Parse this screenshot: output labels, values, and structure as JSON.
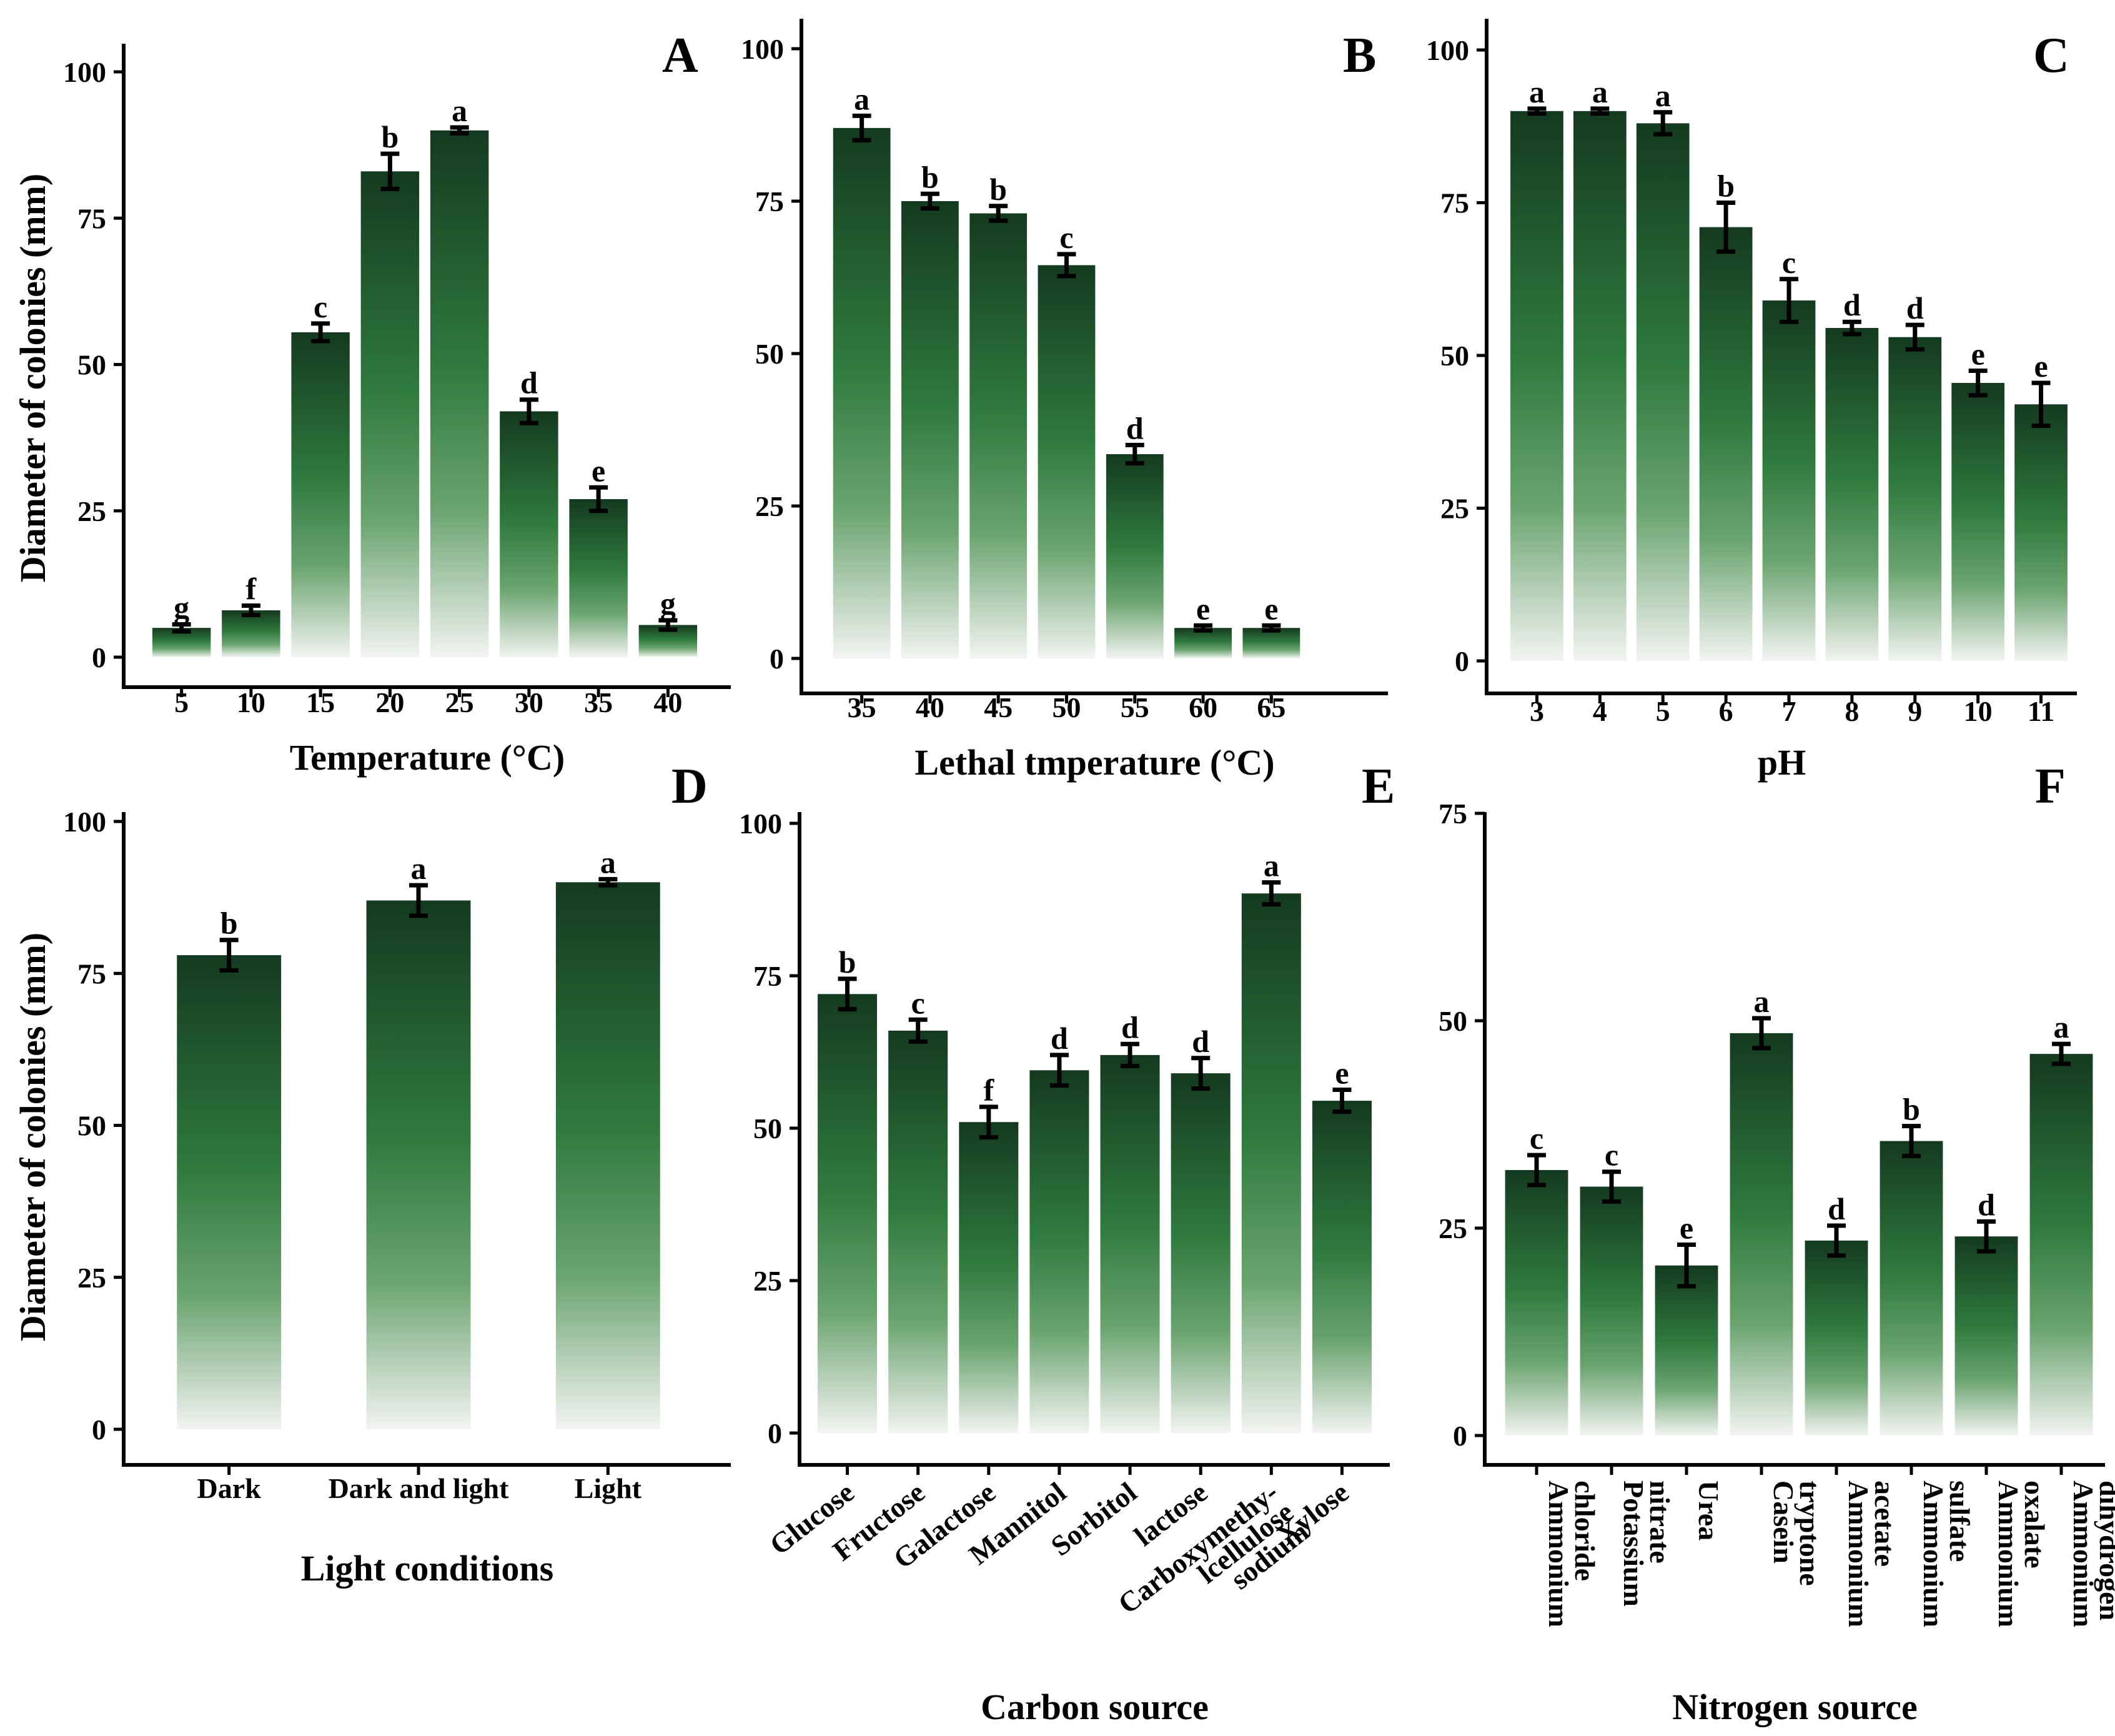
{
  "colors": {
    "bar_top": "#143a1f",
    "bar_mid": "#2f7a3e",
    "bar_bottom": "#f3f4f2",
    "axis": "#000000"
  },
  "chart_data": [
    {
      "id": "A",
      "type": "bar",
      "panel_label": "A",
      "xlabel": "Temperature (°C)",
      "ylabel": "Diameter of colonies (mm)",
      "ylim": [
        0,
        100
      ],
      "yticks": [
        0,
        25,
        50,
        75,
        100
      ],
      "categories": [
        "5",
        "10",
        "15",
        "20",
        "25",
        "30",
        "35",
        "40"
      ],
      "values": [
        5,
        8,
        55.5,
        83,
        90,
        42,
        27,
        5.5
      ],
      "errors": [
        0.6,
        0.8,
        1.5,
        3,
        0.5,
        2,
        2,
        0.8
      ],
      "letters": [
        "g",
        "f",
        "c",
        "b",
        "a",
        "d",
        "e",
        "g"
      ]
    },
    {
      "id": "B",
      "type": "bar",
      "panel_label": "B",
      "xlabel": "Lethal tmperature (°C)",
      "ylabel": "",
      "ylim": [
        0,
        100
      ],
      "yticks": [
        0,
        25,
        50,
        75,
        100
      ],
      "categories": [
        "35",
        "40",
        "45",
        "50",
        "55",
        "60",
        "65"
      ],
      "values": [
        87,
        75,
        73,
        64.5,
        33.5,
        5,
        5
      ],
      "errors": [
        2,
        1.2,
        1.2,
        1.8,
        1.5,
        0.4,
        0.4
      ],
      "letters": [
        "a",
        "b",
        "b",
        "c",
        "d",
        "e",
        "e"
      ]
    },
    {
      "id": "C",
      "type": "bar",
      "panel_label": "C",
      "xlabel": "pH",
      "ylabel": "",
      "ylim": [
        0,
        100
      ],
      "yticks": [
        0,
        25,
        50,
        75,
        100
      ],
      "categories": [
        "3",
        "4",
        "5",
        "6",
        "7",
        "8",
        "9",
        "10",
        "11"
      ],
      "values": [
        90,
        90,
        88,
        71,
        59,
        54.5,
        53,
        45.5,
        42
      ],
      "errors": [
        0.4,
        0.4,
        1.8,
        4,
        3.5,
        1,
        2,
        2,
        3.5
      ],
      "letters": [
        "a",
        "a",
        "a",
        "b",
        "c",
        "d",
        "d",
        "e",
        "e"
      ]
    },
    {
      "id": "D",
      "type": "bar",
      "panel_label": "D",
      "xlabel": "Light conditions",
      "ylabel": "Diameter of colonies (mm)",
      "ylim": [
        0,
        100
      ],
      "yticks": [
        0,
        25,
        50,
        75,
        100
      ],
      "categories": [
        "Dark",
        "Dark and light",
        "Light"
      ],
      "values": [
        78,
        87,
        90
      ],
      "errors": [
        2.5,
        2.5,
        0.5
      ],
      "letters": [
        "b",
        "a",
        "a"
      ]
    },
    {
      "id": "E",
      "type": "bar",
      "panel_label": "E",
      "xlabel": "Carbon source",
      "ylabel": "",
      "ylim": [
        0,
        100
      ],
      "yticks": [
        0,
        25,
        50,
        75,
        100
      ],
      "categories": [
        "Glucose",
        "Fructose",
        "Galactose",
        "Mannitol",
        "Sorbitol",
        "lactose",
        "Carboxymethy-\nlcellulose\nsodium",
        "Xylose"
      ],
      "values": [
        72,
        66,
        51,
        59.5,
        62,
        59,
        88.5,
        54.5
      ],
      "errors": [
        2.5,
        1.8,
        2.5,
        2.5,
        1.8,
        2.5,
        1.8,
        1.8
      ],
      "letters": [
        "b",
        "c",
        "f",
        "d",
        "d",
        "d",
        "a",
        "e"
      ]
    },
    {
      "id": "F",
      "type": "bar",
      "panel_label": "F",
      "xlabel": "Nitrogen source",
      "ylabel": "",
      "ylim": [
        0,
        75
      ],
      "yticks": [
        0,
        25,
        50,
        75
      ],
      "categories": [
        "Ammonium\nchloride",
        "Potassium\nnitrate",
        "Urea",
        "Casein\ntryptone",
        "Ammonium\nacetate",
        "Ammonium\nsulfate",
        "Ammonium\noxalate",
        "Ammonium\ndihydrogen\nphosphate"
      ],
      "values": [
        32,
        30,
        20.5,
        48.5,
        23.5,
        35.5,
        24,
        46
      ],
      "errors": [
        1.8,
        1.8,
        2.5,
        1.8,
        1.8,
        1.8,
        1.8,
        1.2
      ],
      "letters": [
        "c",
        "c",
        "e",
        "a",
        "d",
        "b",
        "d",
        "a"
      ]
    }
  ]
}
